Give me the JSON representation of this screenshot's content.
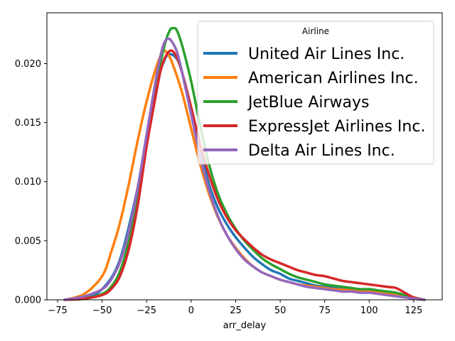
{
  "chart_data": {
    "type": "line",
    "xlabel": "arr_delay",
    "ylabel": "",
    "xlim": [
      -81,
      141
    ],
    "ylim": [
      0,
      0.0243
    ],
    "xticks": [
      -75,
      -50,
      -25,
      0,
      25,
      50,
      75,
      100,
      125
    ],
    "xtick_labels": [
      "−75",
      "−50",
      "−25",
      "0",
      "25",
      "50",
      "75",
      "100",
      "125"
    ],
    "yticks": [
      0,
      0.005,
      0.01,
      0.015,
      0.02
    ],
    "ytick_labels": [
      "0.000",
      "0.005",
      "0.010",
      "0.015",
      "0.020"
    ],
    "grid": false,
    "legend": {
      "title": "Airline",
      "placement": "top-right"
    },
    "series": [
      {
        "name": "United Air Lines Inc.",
        "color": "#1f77b4",
        "points": [
          [
            -71,
            0
          ],
          [
            -60,
            0.0002
          ],
          [
            -50,
            0.0009
          ],
          [
            -40,
            0.0034
          ],
          [
            -30,
            0.0095
          ],
          [
            -25,
            0.0135
          ],
          [
            -20,
            0.018
          ],
          [
            -15,
            0.0203
          ],
          [
            -12,
            0.0208
          ],
          [
            -8,
            0.0204
          ],
          [
            -5,
            0.0192
          ],
          [
            0,
            0.0162
          ],
          [
            5,
            0.0128
          ],
          [
            10,
            0.0098
          ],
          [
            15,
            0.0078
          ],
          [
            20,
            0.0064
          ],
          [
            25,
            0.0053
          ],
          [
            30,
            0.0044
          ],
          [
            35,
            0.0036
          ],
          [
            40,
            0.003
          ],
          [
            45,
            0.0025
          ],
          [
            50,
            0.0022
          ],
          [
            55,
            0.0018
          ],
          [
            60,
            0.0016
          ],
          [
            65,
            0.0014
          ],
          [
            70,
            0.0012
          ],
          [
            75,
            0.0011
          ],
          [
            80,
            0.001
          ],
          [
            85,
            0.0009
          ],
          [
            90,
            0.0009
          ],
          [
            95,
            0.0008
          ],
          [
            100,
            0.0008
          ],
          [
            105,
            0.0007
          ],
          [
            110,
            0.0006
          ],
          [
            115,
            0.0005
          ],
          [
            120,
            0.0003
          ],
          [
            125,
            0.0001
          ],
          [
            131,
            0
          ]
        ]
      },
      {
        "name": "American Airlines Inc.",
        "color": "#ff7f0e",
        "points": [
          [
            -71,
            0
          ],
          [
            -60,
            0.0005
          ],
          [
            -50,
            0.002
          ],
          [
            -45,
            0.004
          ],
          [
            -40,
            0.0065
          ],
          [
            -35,
            0.0098
          ],
          [
            -30,
            0.0135
          ],
          [
            -25,
            0.0168
          ],
          [
            -20,
            0.0195
          ],
          [
            -16,
            0.021
          ],
          [
            -13,
            0.0208
          ],
          [
            -10,
            0.0198
          ],
          [
            -5,
            0.0175
          ],
          [
            0,
            0.0145
          ],
          [
            5,
            0.0115
          ],
          [
            10,
            0.009
          ],
          [
            15,
            0.007
          ],
          [
            20,
            0.0055
          ],
          [
            25,
            0.0044
          ],
          [
            30,
            0.0035
          ],
          [
            35,
            0.0028
          ],
          [
            40,
            0.0023
          ],
          [
            45,
            0.002
          ],
          [
            50,
            0.0017
          ],
          [
            55,
            0.0015
          ],
          [
            60,
            0.0013
          ],
          [
            65,
            0.0012
          ],
          [
            70,
            0.0011
          ],
          [
            75,
            0.001
          ],
          [
            80,
            0.0009
          ],
          [
            90,
            0.0008
          ],
          [
            100,
            0.0007
          ],
          [
            110,
            0.0005
          ],
          [
            115,
            0.0004
          ],
          [
            120,
            0.0003
          ],
          [
            125,
            0.0001
          ],
          [
            131,
            0
          ]
        ]
      },
      {
        "name": "JetBlue Airways",
        "color": "#2ca02c",
        "points": [
          [
            -71,
            0
          ],
          [
            -60,
            0.0001
          ],
          [
            -50,
            0.0005
          ],
          [
            -45,
            0.0011
          ],
          [
            -40,
            0.0024
          ],
          [
            -35,
            0.005
          ],
          [
            -30,
            0.0088
          ],
          [
            -25,
            0.0135
          ],
          [
            -20,
            0.018
          ],
          [
            -15,
            0.0215
          ],
          [
            -12,
            0.0228
          ],
          [
            -10,
            0.023
          ],
          [
            -8,
            0.0228
          ],
          [
            -5,
            0.0215
          ],
          [
            0,
            0.0185
          ],
          [
            5,
            0.0148
          ],
          [
            10,
            0.0115
          ],
          [
            15,
            0.009
          ],
          [
            20,
            0.0073
          ],
          [
            25,
            0.006
          ],
          [
            30,
            0.005
          ],
          [
            35,
            0.0042
          ],
          [
            40,
            0.0035
          ],
          [
            45,
            0.003
          ],
          [
            50,
            0.0026
          ],
          [
            55,
            0.0022
          ],
          [
            60,
            0.0019
          ],
          [
            65,
            0.0017
          ],
          [
            70,
            0.0015
          ],
          [
            75,
            0.0013
          ],
          [
            80,
            0.0012
          ],
          [
            85,
            0.0011
          ],
          [
            90,
            0.001
          ],
          [
            95,
            0.0009
          ],
          [
            100,
            0.0009
          ],
          [
            105,
            0.0008
          ],
          [
            110,
            0.0007
          ],
          [
            115,
            0.0006
          ],
          [
            120,
            0.0004
          ],
          [
            125,
            0.0002
          ],
          [
            131,
            0
          ]
        ]
      },
      {
        "name": "ExpressJet Airlines Inc.",
        "color": "#d62728",
        "points": [
          [
            -71,
            0
          ],
          [
            -60,
            0.0001
          ],
          [
            -50,
            0.0004
          ],
          [
            -45,
            0.0009
          ],
          [
            -40,
            0.002
          ],
          [
            -35,
            0.0043
          ],
          [
            -30,
            0.008
          ],
          [
            -25,
            0.013
          ],
          [
            -20,
            0.0172
          ],
          [
            -17,
            0.0195
          ],
          [
            -14,
            0.0207
          ],
          [
            -11,
            0.0211
          ],
          [
            -8,
            0.0205
          ],
          [
            -5,
            0.0192
          ],
          [
            0,
            0.0163
          ],
          [
            5,
            0.0132
          ],
          [
            10,
            0.0106
          ],
          [
            15,
            0.0085
          ],
          [
            20,
            0.007
          ],
          [
            25,
            0.0059
          ],
          [
            30,
            0.0051
          ],
          [
            35,
            0.0044
          ],
          [
            40,
            0.0038
          ],
          [
            45,
            0.0034
          ],
          [
            50,
            0.0031
          ],
          [
            55,
            0.0028
          ],
          [
            60,
            0.0025
          ],
          [
            65,
            0.0023
          ],
          [
            70,
            0.0021
          ],
          [
            75,
            0.002
          ],
          [
            80,
            0.0018
          ],
          [
            85,
            0.0016
          ],
          [
            90,
            0.0015
          ],
          [
            95,
            0.0014
          ],
          [
            100,
            0.0013
          ],
          [
            105,
            0.0012
          ],
          [
            110,
            0.0011
          ],
          [
            115,
            0.001
          ],
          [
            120,
            0.0006
          ],
          [
            125,
            0.0002
          ],
          [
            131,
            0
          ]
        ]
      },
      {
        "name": "Delta Air Lines Inc.",
        "color": "#9467bd",
        "points": [
          [
            -71,
            0
          ],
          [
            -60,
            0.0003
          ],
          [
            -50,
            0.0009
          ],
          [
            -45,
            0.0017
          ],
          [
            -40,
            0.0032
          ],
          [
            -35,
            0.0058
          ],
          [
            -30,
            0.0095
          ],
          [
            -25,
            0.014
          ],
          [
            -20,
            0.0185
          ],
          [
            -17,
            0.0208
          ],
          [
            -15,
            0.0218
          ],
          [
            -13,
            0.0221
          ],
          [
            -11,
            0.0219
          ],
          [
            -8,
            0.021
          ],
          [
            -5,
            0.0192
          ],
          [
            0,
            0.0157
          ],
          [
            5,
            0.0122
          ],
          [
            10,
            0.0093
          ],
          [
            15,
            0.0071
          ],
          [
            20,
            0.0055
          ],
          [
            25,
            0.0043
          ],
          [
            30,
            0.0034
          ],
          [
            35,
            0.0028
          ],
          [
            40,
            0.0023
          ],
          [
            45,
            0.002
          ],
          [
            50,
            0.0017
          ],
          [
            55,
            0.0015
          ],
          [
            60,
            0.0013
          ],
          [
            65,
            0.0011
          ],
          [
            70,
            0.001
          ],
          [
            75,
            0.0009
          ],
          [
            80,
            0.0008
          ],
          [
            85,
            0.0007
          ],
          [
            90,
            0.0007
          ],
          [
            95,
            0.0006
          ],
          [
            100,
            0.0006
          ],
          [
            105,
            0.0005
          ],
          [
            110,
            0.0004
          ],
          [
            115,
            0.0003
          ],
          [
            120,
            0.0002
          ],
          [
            125,
            0.0001
          ],
          [
            131,
            0
          ]
        ]
      }
    ]
  }
}
